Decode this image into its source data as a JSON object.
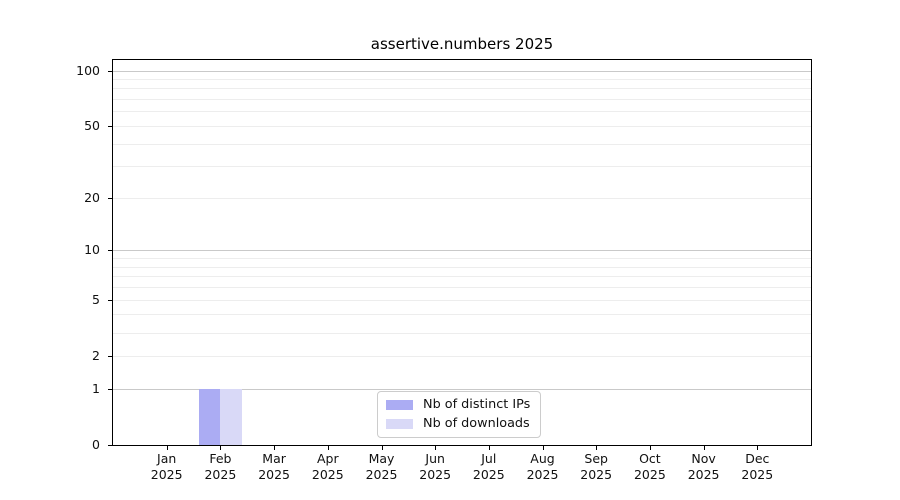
{
  "chart_data": {
    "type": "bar",
    "title": "assertive.numbers 2025",
    "xlabel": "",
    "ylabel": "",
    "categories": [
      "Jan 2025",
      "Feb 2025",
      "Mar 2025",
      "Apr 2025",
      "May 2025",
      "Jun 2025",
      "Jul 2025",
      "Aug 2025",
      "Sep 2025",
      "Oct 2025",
      "Nov 2025",
      "Dec 2025"
    ],
    "series": [
      {
        "name": "Nb of distinct IPs",
        "color": "#abacf3",
        "values": [
          0,
          1,
          0,
          0,
          0,
          0,
          0,
          0,
          0,
          0,
          0,
          0
        ]
      },
      {
        "name": "Nb of downloads",
        "color": "#d9d9f7",
        "values": [
          0,
          1,
          0,
          0,
          0,
          0,
          0,
          0,
          0,
          0,
          0,
          0
        ]
      }
    ],
    "y_axis": {
      "scale": "log1p",
      "ylim": [
        0,
        114
      ],
      "major_ticks": [
        0,
        1,
        2,
        5,
        10,
        20,
        50,
        100
      ],
      "grid_major": [
        1,
        10,
        100
      ],
      "grid_minor": [
        2,
        3,
        4,
        5,
        6,
        7,
        8,
        9,
        20,
        30,
        40,
        50,
        60,
        70,
        80,
        90
      ]
    },
    "legend": {
      "position": "lower center",
      "entries": [
        "Nb of distinct IPs",
        "Nb of downloads"
      ]
    },
    "grid": "on"
  },
  "colors": {
    "grid_major": "#c9c9c9",
    "grid_minor": "#ededed",
    "spine": "#000000",
    "text": "#111111",
    "background": "#ffffff"
  }
}
